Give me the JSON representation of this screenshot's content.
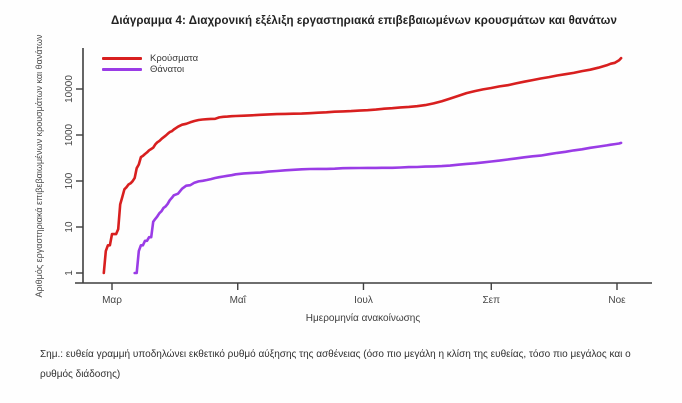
{
  "page": {
    "note": "Σημ.: ευθεία γραμμή υποδηλώνει εκθετικό ρυθμό αύξησης της ασθένειας (όσο πιο μεγάλη η κλίση της ευθείας, τόσο πιο μεγάλος και ο ρυθμός διάδοσης)"
  },
  "chart_data": {
    "type": "line",
    "title": "Διάγραμμα 4: Διαχρονική εξέλιξη εργαστηριακά επιβεβαιωμένων κρουσμάτων και θανάτων",
    "xlabel": "Ημερομηνία ανακοίνωσης",
    "ylabel": "Αριθμός εργαστηριακά επιβεβαιωμένων κρουσμάτων και θανάτων",
    "y_scale": "log10",
    "ylim": [
      1,
      60000
    ],
    "y_ticks": [
      1,
      10,
      100,
      1000,
      10000
    ],
    "x_unit": "days since 1 Mar 2020",
    "x_ticks": [
      {
        "day": 0,
        "label": "Μαρ"
      },
      {
        "day": 61,
        "label": "Μαΐ"
      },
      {
        "day": 122,
        "label": "Ιουλ"
      },
      {
        "day": 184,
        "label": "Σεπ"
      },
      {
        "day": 245,
        "label": "Νοε"
      }
    ],
    "grid": false,
    "legend_position": "top-left",
    "axis_color": "#3f3f3f",
    "text_color": "#454545",
    "series": [
      {
        "id": "cases",
        "name": "Κρούσματα",
        "color": "#d81f1f",
        "points": [
          [
            -4,
            1
          ],
          [
            -3,
            3
          ],
          [
            -2,
            4
          ],
          [
            -1,
            4
          ],
          [
            0,
            7
          ],
          [
            1,
            7
          ],
          [
            2,
            7
          ],
          [
            3,
            9
          ],
          [
            4,
            31
          ],
          [
            5,
            45
          ],
          [
            6,
            66
          ],
          [
            7,
            73
          ],
          [
            8,
            84
          ],
          [
            9,
            89
          ],
          [
            10,
            99
          ],
          [
            11,
            117
          ],
          [
            12,
            190
          ],
          [
            13,
            228
          ],
          [
            14,
            331
          ],
          [
            15,
            352
          ],
          [
            16,
            387
          ],
          [
            17,
            418
          ],
          [
            18,
            464
          ],
          [
            19,
            495
          ],
          [
            20,
            530
          ],
          [
            21,
            624
          ],
          [
            22,
            695
          ],
          [
            23,
            743
          ],
          [
            24,
            821
          ],
          [
            25,
            892
          ],
          [
            26,
            966
          ],
          [
            27,
            1061
          ],
          [
            28,
            1156
          ],
          [
            29,
            1212
          ],
          [
            30,
            1314
          ],
          [
            32,
            1514
          ],
          [
            34,
            1673
          ],
          [
            36,
            1755
          ],
          [
            38,
            1884
          ],
          [
            40,
            2011
          ],
          [
            42,
            2114
          ],
          [
            44,
            2170
          ],
          [
            46,
            2207
          ],
          [
            48,
            2235
          ],
          [
            50,
            2245
          ],
          [
            52,
            2408
          ],
          [
            54,
            2490
          ],
          [
            56,
            2517
          ],
          [
            58,
            2566
          ],
          [
            60,
            2591
          ],
          [
            64,
            2632
          ],
          [
            68,
            2678
          ],
          [
            72,
            2744
          ],
          [
            76,
            2810
          ],
          [
            80,
            2840
          ],
          [
            84,
            2876
          ],
          [
            88,
            2906
          ],
          [
            92,
            2917
          ],
          [
            96,
            2980
          ],
          [
            100,
            3049
          ],
          [
            104,
            3112
          ],
          [
            108,
            3203
          ],
          [
            112,
            3266
          ],
          [
            116,
            3310
          ],
          [
            120,
            3390
          ],
          [
            124,
            3459
          ],
          [
            128,
            3562
          ],
          [
            132,
            3732
          ],
          [
            136,
            3826
          ],
          [
            140,
            3983
          ],
          [
            144,
            4077
          ],
          [
            148,
            4227
          ],
          [
            152,
            4477
          ],
          [
            156,
            4855
          ],
          [
            160,
            5421
          ],
          [
            164,
            6177
          ],
          [
            168,
            7075
          ],
          [
            172,
            8138
          ],
          [
            176,
            8987
          ],
          [
            180,
            9800
          ],
          [
            184,
            10524
          ],
          [
            188,
            11386
          ],
          [
            192,
            12080
          ],
          [
            196,
            13240
          ],
          [
            200,
            14400
          ],
          [
            204,
            15595
          ],
          [
            208,
            16913
          ],
          [
            212,
            18123
          ],
          [
            216,
            19613
          ],
          [
            220,
            20947
          ],
          [
            224,
            22358
          ],
          [
            228,
            24450
          ],
          [
            232,
            26301
          ],
          [
            236,
            29057
          ],
          [
            240,
            32752
          ],
          [
            242,
            35510
          ],
          [
            244,
            37196
          ],
          [
            246,
            42080
          ],
          [
            247,
            46892
          ]
        ]
      },
      {
        "id": "deaths",
        "name": "Θάνατοι",
        "color": "#9a3ce6",
        "points": [
          [
            11,
            1
          ],
          [
            12,
            1
          ],
          [
            13,
            3
          ],
          [
            14,
            4
          ],
          [
            15,
            4
          ],
          [
            16,
            5
          ],
          [
            17,
            5
          ],
          [
            18,
            6
          ],
          [
            19,
            6
          ],
          [
            20,
            13
          ],
          [
            21,
            15
          ],
          [
            22,
            17
          ],
          [
            23,
            20
          ],
          [
            24,
            22
          ],
          [
            25,
            26
          ],
          [
            26,
            28
          ],
          [
            27,
            32
          ],
          [
            28,
            38
          ],
          [
            29,
            43
          ],
          [
            30,
            49
          ],
          [
            32,
            53
          ],
          [
            34,
            68
          ],
          [
            36,
            79
          ],
          [
            38,
            81
          ],
          [
            40,
            92
          ],
          [
            42,
            98
          ],
          [
            44,
            101
          ],
          [
            46,
            105
          ],
          [
            48,
            110
          ],
          [
            50,
            116
          ],
          [
            52,
            121
          ],
          [
            54,
            125
          ],
          [
            56,
            130
          ],
          [
            58,
            134
          ],
          [
            60,
            140
          ],
          [
            64,
            146
          ],
          [
            68,
            150
          ],
          [
            72,
            152
          ],
          [
            76,
            160
          ],
          [
            80,
            165
          ],
          [
            84,
            171
          ],
          [
            88,
            175
          ],
          [
            92,
            180
          ],
          [
            96,
            182
          ],
          [
            100,
            183
          ],
          [
            104,
            183
          ],
          [
            108,
            185
          ],
          [
            112,
            190
          ],
          [
            116,
            191
          ],
          [
            120,
            192
          ],
          [
            124,
            193
          ],
          [
            128,
            193
          ],
          [
            132,
            194
          ],
          [
            136,
            194
          ],
          [
            140,
            197
          ],
          [
            144,
            201
          ],
          [
            148,
            202
          ],
          [
            152,
            206
          ],
          [
            156,
            208
          ],
          [
            160,
            211
          ],
          [
            164,
            216
          ],
          [
            168,
            226
          ],
          [
            172,
            235
          ],
          [
            176,
            242
          ],
          [
            180,
            254
          ],
          [
            184,
            266
          ],
          [
            188,
            278
          ],
          [
            192,
            293
          ],
          [
            196,
            310
          ],
          [
            200,
            327
          ],
          [
            204,
            344
          ],
          [
            208,
            357
          ],
          [
            212,
            383
          ],
          [
            216,
            409
          ],
          [
            220,
            431
          ],
          [
            224,
            462
          ],
          [
            228,
            490
          ],
          [
            232,
            528
          ],
          [
            236,
            559
          ],
          [
            240,
            593
          ],
          [
            242,
            615
          ],
          [
            244,
            635
          ],
          [
            246,
            655
          ],
          [
            247,
            673
          ]
        ]
      }
    ]
  }
}
